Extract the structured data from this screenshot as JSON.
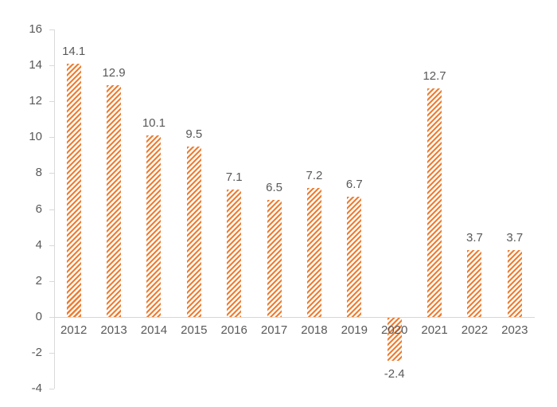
{
  "chart_data": {
    "type": "bar",
    "title": "",
    "xlabel": "",
    "ylabel": "",
    "categories": [
      "2012",
      "2013",
      "2014",
      "2015",
      "2016",
      "2017",
      "2018",
      "2019",
      "2020",
      "2021",
      "2022",
      "2023"
    ],
    "values": [
      14.1,
      12.9,
      10.1,
      9.5,
      7.1,
      6.5,
      7.2,
      6.7,
      -2.4,
      12.7,
      3.7,
      3.7
    ],
    "data_labels": [
      "14.1",
      "12.9",
      "10.1",
      "9.5",
      "7.1",
      "6.5",
      "7.2",
      "6.7",
      "-2.4",
      "12.7",
      "3.7",
      "3.7"
    ],
    "ylim": [
      -4,
      16
    ],
    "yticks": [
      "-4",
      "-2",
      "0",
      "2",
      "4",
      "6",
      "8",
      "10",
      "12",
      "14",
      "16"
    ],
    "ytick_values": [
      -4,
      -2,
      0,
      2,
      4,
      6,
      8,
      10,
      12,
      14,
      16
    ],
    "grid": false,
    "legend": false,
    "bar_style": "diagonal-hatch",
    "bar_color": "#ED7D31",
    "axis_color": "#D9D9D9",
    "text_color": "#595959"
  }
}
